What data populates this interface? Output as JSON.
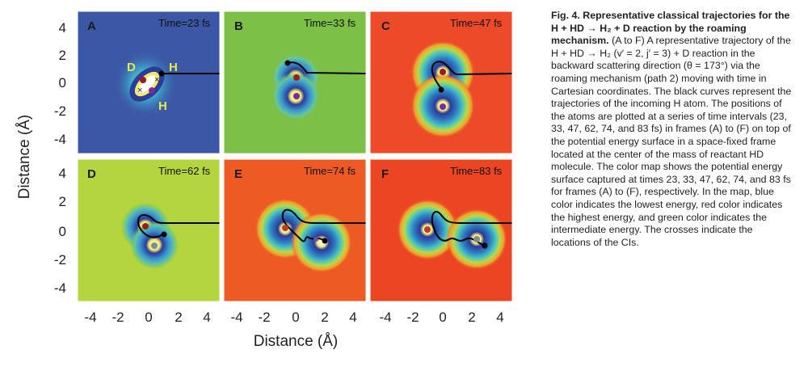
{
  "figure": {
    "panels": [
      {
        "letter": "A",
        "time": "Time=23 fs",
        "bg": "#3b57a6",
        "green": false,
        "atoms_centers": [
          [
            0.2,
            0.3
          ]
        ]
      },
      {
        "letter": "B",
        "time": "Time=33 fs",
        "bg": "#7cc047",
        "green": true
      },
      {
        "letter": "C",
        "time": "Time=47 fs",
        "bg": "#ec4a28"
      },
      {
        "letter": "D",
        "time": "Time=62 fs",
        "bg": "#b3d53f"
      },
      {
        "letter": "E",
        "time": "Time=74 fs",
        "bg": "#ed5a24"
      },
      {
        "letter": "F",
        "time": "Time=83 fs",
        "bg": "#ec4523"
      }
    ],
    "atom_labels": {
      "d": "D",
      "h1": "H",
      "h2": "H"
    },
    "x_ticks": [
      "-4",
      "-2",
      "0",
      "2",
      "4"
    ],
    "y_ticks": [
      "4",
      "2",
      "0",
      "-2",
      "-4"
    ],
    "xlabel": "Distance (Å)",
    "ylabel": "Distance (Å)",
    "colors": {
      "yellow_label": "#e8e84a",
      "trajectory": "#000000"
    }
  },
  "caption": {
    "title": "Fig. 4. Representative classical trajectories for the H + HD → H₂ + D reaction by the roaming mechanism.",
    "body": "(A to F) A representative trajectory of the H + HD → H₂ (v′ = 2, j′ = 3) + D reaction in the backward scattering direction (θ = 173°) via the roaming mechanism (path 2) moving with time in Cartesian coordinates. The black curves represent the trajectories of the incoming H atom. The positions of the atoms are plotted at a series of time intervals (23, 33, 47, 62, 74, and 83 fs) in frames (A) to (F) on top of the potential energy surface in a space-fixed frame located at the center of the mass of reactant HD molecule. The color map shows the potential energy surface captured at times 23, 33, 47, 62, 74, and 83 fs for frames (A) to (F), respectively. In the map, blue color indicates the lowest energy, red color indicates the highest energy, and green color indicates the intermediate energy. The crosses indicate the locations of the CIs."
  }
}
